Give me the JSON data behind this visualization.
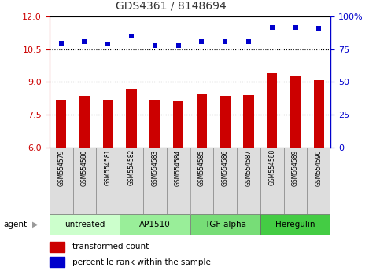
{
  "title": "GDS4361 / 8148694",
  "samples": [
    "GSM554579",
    "GSM554580",
    "GSM554581",
    "GSM554582",
    "GSM554583",
    "GSM554584",
    "GSM554585",
    "GSM554586",
    "GSM554587",
    "GSM554588",
    "GSM554589",
    "GSM554590"
  ],
  "bar_values": [
    8.2,
    8.35,
    8.2,
    8.7,
    8.2,
    8.15,
    8.45,
    8.35,
    8.4,
    9.4,
    9.25,
    9.1
  ],
  "dot_values": [
    80,
    81,
    79,
    85,
    78,
    78,
    81,
    81,
    81,
    92,
    92,
    91
  ],
  "ylim_left": [
    6,
    12
  ],
  "ylim_right": [
    0,
    100
  ],
  "yticks_left": [
    6,
    7.5,
    9,
    10.5,
    12
  ],
  "yticks_right": [
    0,
    25,
    50,
    75,
    100
  ],
  "ytick_labels_right": [
    "0",
    "25",
    "50",
    "75",
    "100%"
  ],
  "bar_color": "#cc0000",
  "dot_color": "#0000cc",
  "agents": [
    {
      "label": "untreated",
      "start": 0,
      "end": 3,
      "color": "#ccffcc"
    },
    {
      "label": "AP1510",
      "start": 3,
      "end": 6,
      "color": "#99ee99"
    },
    {
      "label": "TGF-alpha",
      "start": 6,
      "end": 9,
      "color": "#77dd77"
    },
    {
      "label": "Heregulin",
      "start": 9,
      "end": 12,
      "color": "#44cc44"
    }
  ],
  "legend_bar_label": "transformed count",
  "legend_dot_label": "percentile rank within the sample",
  "agent_label": "agent",
  "title_color": "#333333",
  "left_axis_color": "#cc0000",
  "right_axis_color": "#0000cc",
  "background_color": "#ffffff",
  "plot_bg_color": "#ffffff",
  "gridline_ticks": [
    7.5,
    9.0,
    10.5
  ],
  "bar_width": 0.45
}
